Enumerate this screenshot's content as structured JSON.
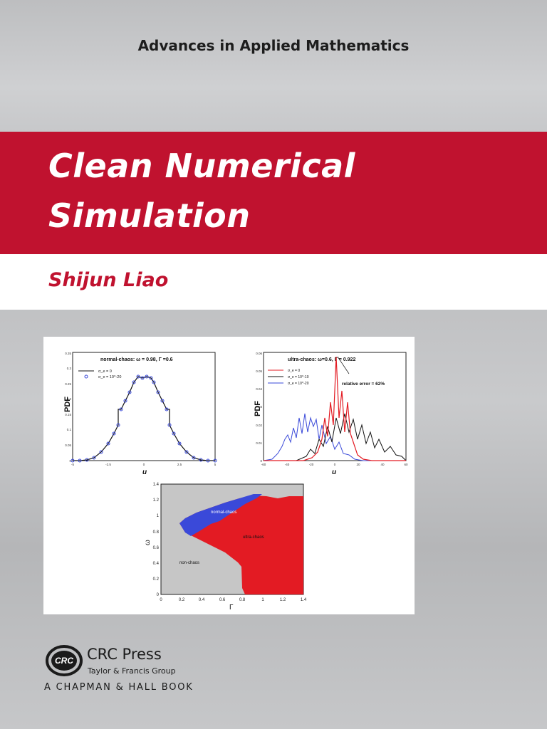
{
  "series_title": "Advances in Applied Mathematics",
  "book": {
    "title_line1": "Clean Numerical",
    "title_line2": "Simulation",
    "author": "Shijun Liao"
  },
  "colors": {
    "brand_red": "#c0122f",
    "series_blue": "#3a49d9",
    "series_red": "#e31b23",
    "series_black": "#111111"
  },
  "figures": {
    "normal_chaos": {
      "title": "normal-chaos:   ω = 0.98,  Γ =0.6",
      "ylabel": "PDF",
      "xlabel": "u",
      "legend": [
        "σ_e = 0",
        "σ_e = 10^-20"
      ],
      "yticks": [
        "0.35",
        "0.3",
        "0.25",
        "0.2",
        "0.15",
        "0.1",
        "0.05",
        "0"
      ],
      "xticks": [
        "-5",
        "-2.5",
        "0",
        "2.5",
        "5"
      ]
    },
    "ultra_chaos": {
      "title": "ultra-chaos:   ω=0.6,  Γ = 0.922",
      "ylabel": "PDF",
      "xlabel": "u",
      "legend": [
        "σ_e = 0",
        "σ_e = 10^-10",
        "σ_e = 10^-20"
      ],
      "annotation": "relative error = 62%",
      "yticks": [
        "0.06",
        "0.05",
        "0.04",
        "0.03",
        "0.02",
        "0.01",
        "0"
      ],
      "xticks": [
        "-60",
        "-40",
        "-20",
        "0",
        "20",
        "40",
        "60"
      ]
    },
    "phase_map": {
      "xlabel": "Γ",
      "ylabel": "ω",
      "regions": [
        "normal-chaos",
        "ultra-chaos",
        "non-chaos"
      ],
      "yticks": [
        "1.4",
        "1.2",
        "1",
        "0.8",
        "0.6",
        "0.4",
        "0.2",
        "0"
      ],
      "xticks": [
        "0",
        "0.2",
        "0.4",
        "0.6",
        "0.8",
        "1",
        "1.2",
        "1.4"
      ]
    }
  },
  "publisher": {
    "logo_text": "CRC",
    "name": "CRC Press",
    "group": "Taylor & Francis Group",
    "imprint": "A CHAPMAN & HALL BOOK"
  }
}
